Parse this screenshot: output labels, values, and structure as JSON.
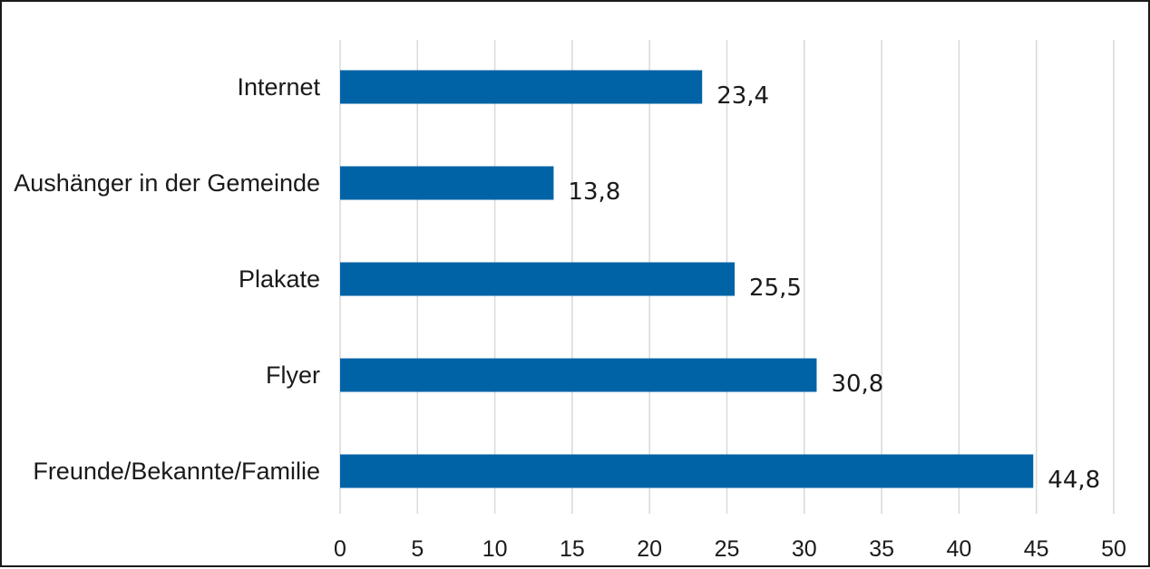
{
  "chart_data": {
    "type": "bar",
    "orientation": "horizontal",
    "categories": [
      "Internet",
      "Aushänger in der Gemeinde",
      "Plakate",
      "Flyer",
      "Freunde/Bekannte/Familie"
    ],
    "values": [
      23.4,
      13.8,
      25.5,
      30.8,
      44.8
    ],
    "data_labels": [
      "23,4",
      "13,8",
      "25,5",
      "30,8",
      "44,8"
    ],
    "xlim": [
      0,
      50
    ],
    "x_ticks": [
      0,
      5,
      10,
      15,
      20,
      25,
      30,
      35,
      40,
      45,
      50
    ],
    "x_tick_labels": [
      "0",
      "5",
      "10",
      "15",
      "20",
      "25",
      "30",
      "35",
      "40",
      "45",
      "50"
    ],
    "grid": "vertical",
    "legend": "none",
    "colors": {
      "bar": "#0063a6",
      "grid": "#d9d9d9",
      "border": "#1a1a1a"
    }
  }
}
